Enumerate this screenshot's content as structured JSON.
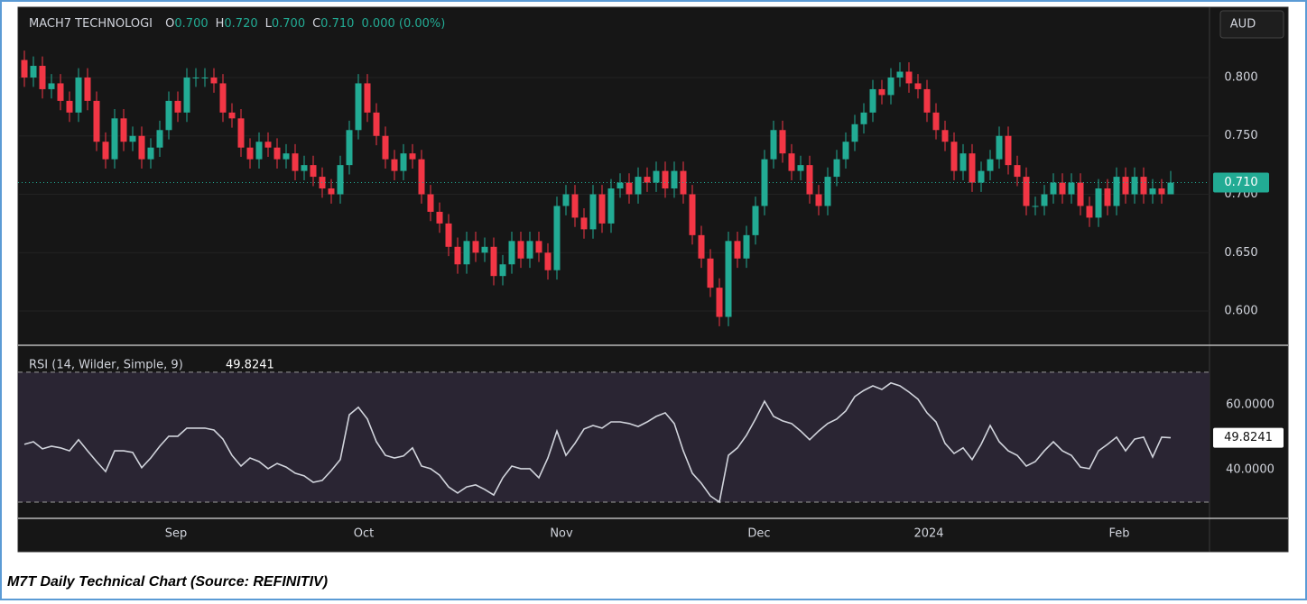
{
  "header": {
    "symbol": "MACH7 TECHNOLOGI",
    "ohlc": [
      {
        "key": "O",
        "value": "0.700"
      },
      {
        "key": "H",
        "value": "0.720"
      },
      {
        "key": "L",
        "value": "0.700"
      },
      {
        "key": "C",
        "value": "0.710"
      }
    ],
    "change": "0.000 (0.00%)",
    "currency": "AUD"
  },
  "caption": "M7T Daily Technical Chart (Source: REFINITIV)",
  "chart_data": [
    {
      "type": "candlestick",
      "up_color": "#22ab94",
      "down_color": "#f23645",
      "grid": true,
      "xlim": [
        -0.7,
        131.3
      ],
      "xticks": [
        {
          "value": 16.8,
          "label": "Sep"
        },
        {
          "value": 37.6,
          "label": "Oct"
        },
        {
          "value": 59.5,
          "label": "Nov"
        },
        {
          "value": 81.4,
          "label": "Dec"
        },
        {
          "value": 100.2,
          "label": "2024"
        },
        {
          "value": 121.3,
          "label": "Feb"
        }
      ],
      "ylim": [
        0.5707,
        0.8602
      ],
      "yticks": [
        {
          "value": 0.6,
          "label": "0.600"
        },
        {
          "value": 0.65,
          "label": "0.650"
        },
        {
          "value": 0.7,
          "label": "0.700"
        },
        {
          "value": 0.75,
          "label": "0.750"
        },
        {
          "value": 0.8,
          "label": "0.800"
        }
      ],
      "last_label": "0.710",
      "open": [
        0.815,
        0.8,
        0.81,
        0.79,
        0.795,
        0.78,
        0.77,
        0.8,
        0.78,
        0.745,
        0.73,
        0.765,
        0.745,
        0.75,
        0.73,
        0.74,
        0.755,
        0.78,
        0.77,
        0.8,
        0.8,
        0.8,
        0.795,
        0.77,
        0.765,
        0.74,
        0.73,
        0.745,
        0.74,
        0.73,
        0.735,
        0.72,
        0.725,
        0.715,
        0.705,
        0.7,
        0.725,
        0.755,
        0.795,
        0.77,
        0.75,
        0.73,
        0.72,
        0.735,
        0.73,
        0.7,
        0.685,
        0.675,
        0.655,
        0.64,
        0.66,
        0.65,
        0.655,
        0.63,
        0.64,
        0.66,
        0.645,
        0.66,
        0.65,
        0.635,
        0.69,
        0.7,
        0.68,
        0.67,
        0.7,
        0.675,
        0.705,
        0.71,
        0.7,
        0.715,
        0.71,
        0.72,
        0.705,
        0.72,
        0.7,
        0.665,
        0.645,
        0.62,
        0.595,
        0.66,
        0.645,
        0.665,
        0.69,
        0.73,
        0.755,
        0.735,
        0.72,
        0.725,
        0.7,
        0.69,
        0.715,
        0.73,
        0.745,
        0.76,
        0.77,
        0.79,
        0.785,
        0.8,
        0.805,
        0.795,
        0.79,
        0.77,
        0.755,
        0.745,
        0.72,
        0.735,
        0.71,
        0.72,
        0.73,
        0.75,
        0.725,
        0.715,
        0.69,
        0.69,
        0.7,
        0.71,
        0.7,
        0.71,
        0.69,
        0.68,
        0.705,
        0.69,
        0.715,
        0.7,
        0.715,
        0.7,
        0.705,
        0.7
      ],
      "high": [
        0.823,
        0.818,
        0.818,
        0.803,
        0.803,
        0.788,
        0.808,
        0.808,
        0.788,
        0.753,
        0.773,
        0.773,
        0.758,
        0.758,
        0.748,
        0.763,
        0.788,
        0.788,
        0.808,
        0.808,
        0.808,
        0.808,
        0.803,
        0.778,
        0.773,
        0.748,
        0.753,
        0.753,
        0.748,
        0.743,
        0.743,
        0.733,
        0.733,
        0.723,
        0.713,
        0.733,
        0.763,
        0.803,
        0.803,
        0.778,
        0.758,
        0.738,
        0.743,
        0.743,
        0.738,
        0.708,
        0.693,
        0.683,
        0.663,
        0.668,
        0.668,
        0.663,
        0.663,
        0.648,
        0.668,
        0.668,
        0.668,
        0.668,
        0.658,
        0.698,
        0.708,
        0.708,
        0.688,
        0.708,
        0.708,
        0.713,
        0.718,
        0.718,
        0.723,
        0.723,
        0.728,
        0.728,
        0.728,
        0.728,
        0.708,
        0.673,
        0.653,
        0.628,
        0.668,
        0.668,
        0.673,
        0.698,
        0.738,
        0.763,
        0.763,
        0.743,
        0.733,
        0.733,
        0.708,
        0.723,
        0.738,
        0.753,
        0.768,
        0.778,
        0.798,
        0.798,
        0.808,
        0.813,
        0.813,
        0.803,
        0.798,
        0.778,
        0.763,
        0.753,
        0.743,
        0.743,
        0.728,
        0.738,
        0.758,
        0.758,
        0.733,
        0.723,
        0.698,
        0.708,
        0.718,
        0.718,
        0.718,
        0.718,
        0.698,
        0.713,
        0.713,
        0.723,
        0.723,
        0.723,
        0.723,
        0.713,
        0.713,
        0.72
      ],
      "low": [
        0.792,
        0.792,
        0.782,
        0.782,
        0.772,
        0.762,
        0.762,
        0.772,
        0.737,
        0.722,
        0.722,
        0.737,
        0.737,
        0.722,
        0.722,
        0.732,
        0.747,
        0.762,
        0.762,
        0.792,
        0.792,
        0.787,
        0.762,
        0.757,
        0.732,
        0.722,
        0.722,
        0.732,
        0.722,
        0.722,
        0.712,
        0.712,
        0.707,
        0.697,
        0.692,
        0.692,
        0.717,
        0.747,
        0.762,
        0.742,
        0.722,
        0.712,
        0.712,
        0.722,
        0.692,
        0.677,
        0.667,
        0.647,
        0.632,
        0.632,
        0.642,
        0.642,
        0.622,
        0.622,
        0.632,
        0.637,
        0.637,
        0.642,
        0.627,
        0.627,
        0.682,
        0.672,
        0.662,
        0.662,
        0.667,
        0.667,
        0.697,
        0.692,
        0.692,
        0.702,
        0.702,
        0.697,
        0.697,
        0.692,
        0.657,
        0.637,
        0.612,
        0.587,
        0.587,
        0.637,
        0.637,
        0.657,
        0.682,
        0.722,
        0.727,
        0.712,
        0.712,
        0.692,
        0.682,
        0.682,
        0.707,
        0.722,
        0.737,
        0.752,
        0.762,
        0.777,
        0.777,
        0.792,
        0.787,
        0.782,
        0.762,
        0.747,
        0.737,
        0.712,
        0.712,
        0.702,
        0.702,
        0.712,
        0.722,
        0.717,
        0.707,
        0.682,
        0.682,
        0.682,
        0.692,
        0.692,
        0.692,
        0.682,
        0.672,
        0.672,
        0.682,
        0.682,
        0.692,
        0.692,
        0.692,
        0.692,
        0.692,
        0.7
      ],
      "close": [
        0.8,
        0.81,
        0.79,
        0.795,
        0.78,
        0.77,
        0.8,
        0.78,
        0.745,
        0.73,
        0.765,
        0.745,
        0.75,
        0.73,
        0.74,
        0.755,
        0.78,
        0.77,
        0.8,
        0.8,
        0.8,
        0.795,
        0.77,
        0.765,
        0.74,
        0.73,
        0.745,
        0.74,
        0.73,
        0.735,
        0.72,
        0.725,
        0.715,
        0.705,
        0.7,
        0.725,
        0.755,
        0.795,
        0.77,
        0.75,
        0.73,
        0.72,
        0.735,
        0.73,
        0.7,
        0.685,
        0.675,
        0.655,
        0.64,
        0.66,
        0.65,
        0.655,
        0.63,
        0.64,
        0.66,
        0.645,
        0.66,
        0.65,
        0.635,
        0.69,
        0.7,
        0.68,
        0.67,
        0.7,
        0.675,
        0.705,
        0.71,
        0.7,
        0.715,
        0.71,
        0.72,
        0.705,
        0.72,
        0.7,
        0.665,
        0.645,
        0.62,
        0.595,
        0.66,
        0.645,
        0.665,
        0.69,
        0.73,
        0.755,
        0.735,
        0.72,
        0.725,
        0.7,
        0.69,
        0.715,
        0.73,
        0.745,
        0.76,
        0.77,
        0.79,
        0.785,
        0.8,
        0.805,
        0.795,
        0.79,
        0.77,
        0.755,
        0.745,
        0.72,
        0.735,
        0.71,
        0.72,
        0.73,
        0.75,
        0.725,
        0.715,
        0.69,
        0.69,
        0.7,
        0.71,
        0.7,
        0.71,
        0.69,
        0.68,
        0.705,
        0.69,
        0.715,
        0.7,
        0.715,
        0.7,
        0.705,
        0.7,
        0.71
      ]
    },
    {
      "type": "line",
      "title": "RSI (14, Wilder, Simple, 9)",
      "color": "#d1d4dc",
      "band_fill": "#2a2533",
      "ylim": [
        25,
        78.3
      ],
      "yticks": [
        {
          "value": 40,
          "label": "40.0000"
        },
        {
          "value": 60,
          "label": "60.0000"
        }
      ],
      "bands": [
        30,
        70
      ],
      "last_label": "49.8241",
      "values": [
        47.8,
        48.6,
        46.4,
        47.2,
        46.7,
        45.8,
        49.2,
        45.8,
        42.5,
        39.4,
        45.8,
        45.8,
        45.3,
        40.6,
        43.6,
        47.2,
        50.3,
        50.3,
        52.8,
        52.8,
        52.8,
        52.2,
        49.4,
        44.4,
        41.1,
        43.6,
        42.5,
        40.3,
        41.9,
        40.8,
        38.9,
        38.1,
        36.1,
        36.7,
        39.7,
        43.1,
        56.9,
        59.2,
        55.6,
        48.6,
        44.4,
        43.6,
        44.2,
        46.7,
        41.1,
        40.3,
        38.3,
        34.7,
        32.8,
        34.7,
        35.3,
        33.9,
        32.2,
        37.5,
        41.1,
        40.3,
        40.3,
        37.5,
        43.6,
        51.9,
        44.4,
        48.1,
        52.5,
        53.6,
        52.8,
        54.7,
        54.7,
        54.2,
        53.3,
        54.7,
        56.4,
        57.5,
        54.2,
        45.8,
        38.9,
        35.8,
        31.9,
        30.0,
        44.4,
        46.7,
        50.6,
        55.6,
        61.1,
        56.4,
        55.0,
        54.2,
        51.9,
        49.2,
        51.9,
        54.2,
        55.6,
        58.1,
        62.5,
        64.4,
        65.8,
        64.7,
        66.7,
        65.8,
        63.9,
        61.7,
        57.5,
        54.7,
        48.1,
        45.0,
        46.7,
        43.1,
        47.8,
        53.6,
        48.6,
        45.8,
        44.4,
        41.1,
        42.5,
        45.8,
        48.6,
        45.8,
        44.4,
        40.8,
        40.3,
        45.8,
        47.8,
        50.0,
        45.8,
        49.4,
        50.0,
        43.9,
        50.0,
        49.8241
      ]
    }
  ]
}
